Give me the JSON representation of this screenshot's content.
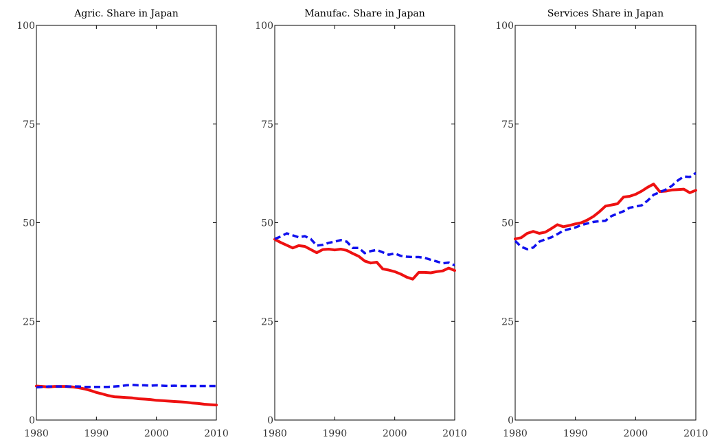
{
  "chart_data": [
    {
      "type": "line",
      "title": "Agric. Share in Japan",
      "xlabel": "",
      "ylabel": "",
      "xlim": [
        1980,
        2010
      ],
      "ylim": [
        0,
        100
      ],
      "xticks": [
        1980,
        1990,
        2000,
        2010
      ],
      "yticks": [
        0,
        25,
        50,
        75,
        100
      ],
      "grid": false,
      "x": [
        1980,
        1981,
        1982,
        1983,
        1984,
        1985,
        1986,
        1987,
        1988,
        1989,
        1990,
        1991,
        1992,
        1993,
        1994,
        1995,
        1996,
        1997,
        1998,
        1999,
        2000,
        2001,
        2002,
        2003,
        2004,
        2005,
        2006,
        2007,
        2008,
        2009,
        2010
      ],
      "series": [
        {
          "style": "solid",
          "color": "#ee1111",
          "values": [
            8.6,
            8.5,
            8.4,
            8.5,
            8.5,
            8.5,
            8.4,
            8.2,
            7.9,
            7.5,
            7.0,
            6.6,
            6.2,
            5.9,
            5.8,
            5.7,
            5.6,
            5.4,
            5.3,
            5.2,
            5.0,
            4.9,
            4.8,
            4.7,
            4.6,
            4.5,
            4.3,
            4.2,
            4.0,
            3.9,
            3.8
          ]
        },
        {
          "style": "dashed",
          "color": "#1111ee",
          "values": [
            8.3,
            8.4,
            8.5,
            8.5,
            8.5,
            8.5,
            8.5,
            8.5,
            8.4,
            8.4,
            8.4,
            8.4,
            8.4,
            8.5,
            8.6,
            8.8,
            8.9,
            8.8,
            8.8,
            8.7,
            8.8,
            8.7,
            8.6,
            8.7,
            8.6,
            8.6,
            8.6,
            8.6,
            8.6,
            8.6,
            8.6
          ]
        }
      ]
    },
    {
      "type": "line",
      "title": "Manufac. Share in Japan",
      "xlabel": "",
      "ylabel": "",
      "xlim": [
        1980,
        2010
      ],
      "ylim": [
        0,
        100
      ],
      "xticks": [
        1980,
        1990,
        2000,
        2010
      ],
      "yticks": [
        0,
        25,
        50,
        75,
        100
      ],
      "grid": false,
      "x": [
        1980,
        1981,
        1982,
        1983,
        1984,
        1985,
        1986,
        1987,
        1988,
        1989,
        1990,
        1991,
        1992,
        1993,
        1994,
        1995,
        1996,
        1997,
        1998,
        1999,
        2000,
        2001,
        2002,
        2003,
        2004,
        2005,
        2006,
        2007,
        2008,
        2009,
        2010
      ],
      "series": [
        {
          "style": "solid",
          "color": "#ee1111",
          "values": [
            45.8,
            45.0,
            44.3,
            43.6,
            44.2,
            44.0,
            43.2,
            42.4,
            43.2,
            43.3,
            43.1,
            43.3,
            43.0,
            42.2,
            41.5,
            40.3,
            39.8,
            40.0,
            38.3,
            38.0,
            37.6,
            37.0,
            36.2,
            35.7,
            37.4,
            37.4,
            37.3,
            37.6,
            37.8,
            38.5,
            37.9
          ]
        },
        {
          "style": "dashed",
          "color": "#1111ee",
          "values": [
            45.9,
            46.5,
            47.3,
            46.8,
            46.3,
            46.6,
            45.9,
            44.2,
            44.4,
            44.9,
            45.2,
            45.6,
            45.2,
            43.6,
            43.6,
            42.3,
            42.8,
            43.1,
            42.5,
            41.9,
            42.2,
            41.6,
            41.4,
            41.3,
            41.3,
            41.1,
            40.6,
            40.2,
            39.7,
            39.9,
            39.2
          ]
        }
      ]
    },
    {
      "type": "line",
      "title": "Services Share in Japan",
      "xlabel": "",
      "ylabel": "",
      "xlim": [
        1980,
        2010
      ],
      "ylim": [
        0,
        100
      ],
      "xticks": [
        1980,
        1990,
        2000,
        2010
      ],
      "yticks": [
        0,
        25,
        50,
        75,
        100
      ],
      "grid": false,
      "x": [
        1980,
        1981,
        1982,
        1983,
        1984,
        1985,
        1986,
        1987,
        1988,
        1989,
        1990,
        1991,
        1992,
        1993,
        1994,
        1995,
        1996,
        1997,
        1998,
        1999,
        2000,
        2001,
        2002,
        2003,
        2004,
        2005,
        2006,
        2007,
        2008,
        2009,
        2010
      ],
      "series": [
        {
          "style": "solid",
          "color": "#ee1111",
          "values": [
            45.9,
            46.2,
            47.3,
            47.8,
            47.3,
            47.6,
            48.5,
            49.5,
            49.0,
            49.3,
            49.7,
            50.0,
            50.7,
            51.6,
            52.8,
            54.2,
            54.5,
            54.8,
            56.5,
            56.7,
            57.2,
            58.0,
            59.0,
            59.8,
            57.9,
            58.0,
            58.3,
            58.4,
            58.5,
            57.6,
            58.2
          ]
        },
        {
          "style": "dashed",
          "color": "#1111ee",
          "values": [
            45.4,
            43.9,
            43.3,
            43.7,
            45.2,
            45.8,
            46.3,
            47.1,
            48.0,
            48.4,
            48.8,
            49.4,
            49.8,
            50.2,
            50.4,
            50.5,
            51.7,
            52.3,
            52.9,
            53.8,
            54.1,
            54.4,
            55.6,
            57.1,
            57.7,
            58.4,
            59.3,
            60.7,
            61.7,
            61.6,
            62.6
          ]
        }
      ]
    }
  ]
}
